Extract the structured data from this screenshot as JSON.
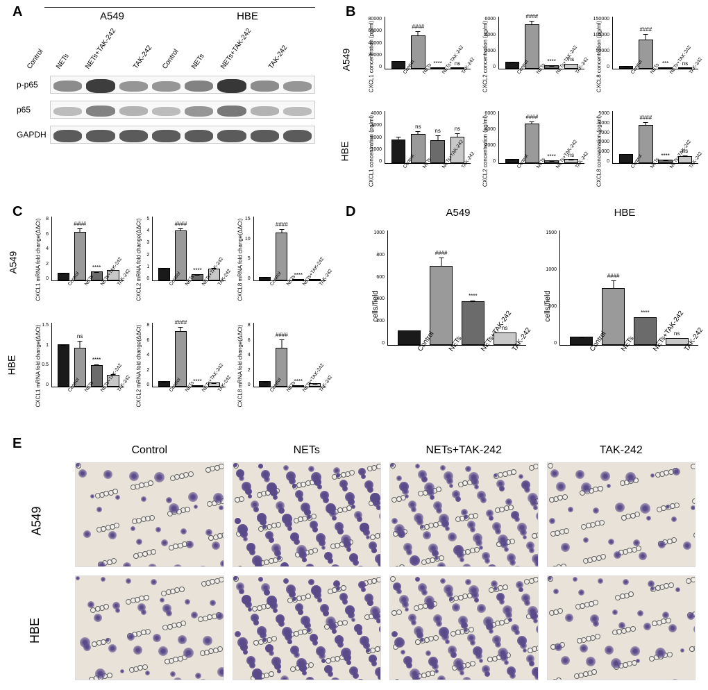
{
  "panels": {
    "A": {
      "letter": "A"
    },
    "B": {
      "letter": "B"
    },
    "C": {
      "letter": "C"
    },
    "D": {
      "letter": "D"
    },
    "E": {
      "letter": "E"
    }
  },
  "cell_lines": [
    "A549",
    "HBE"
  ],
  "conditions": [
    "Control",
    "NETs",
    "NETs+TAK-242",
    "TAK-242"
  ],
  "western_blot": {
    "targets": [
      "p-p65",
      "p65",
      "GAPDH"
    ],
    "band_intensities": {
      "p-p65": [
        0.55,
        0.95,
        0.5,
        0.5,
        0.6,
        0.98,
        0.55,
        0.5
      ],
      "p65": [
        0.3,
        0.6,
        0.35,
        0.3,
        0.5,
        0.65,
        0.35,
        0.3
      ],
      "GAPDH": [
        0.8,
        0.8,
        0.8,
        0.8,
        0.8,
        0.8,
        0.8,
        0.8
      ]
    }
  },
  "bar_colors": [
    "#1a1a1a",
    "#9a9a9a",
    "#6b6b6b",
    "#c8c8c8"
  ],
  "bar_border": "#000000",
  "panel_B": {
    "ylabel_suffix": " concentration (pg/ml)",
    "charts": [
      {
        "row": "A549",
        "gene": "CXCL1",
        "ymax": 80000,
        "ystep": 20000,
        "values": [
          12000,
          51000,
          2500,
          2000
        ],
        "err": [
          3000,
          12000,
          800,
          700
        ],
        "sig": [
          "",
          "####",
          "****",
          "ns"
        ]
      },
      {
        "row": "A549",
        "gene": "CXCL2",
        "ymax": 6000,
        "ystep": 2000,
        "values": [
          800,
          5100,
          400,
          600
        ],
        "err": [
          300,
          600,
          150,
          400
        ],
        "sig": [
          "",
          "####",
          "****",
          "ns"
        ]
      },
      {
        "row": "A549",
        "gene": "CXCL8",
        "ymax": 150000,
        "ystep": 50000,
        "values": [
          8000,
          85000,
          3000,
          4000
        ],
        "err": [
          3000,
          30000,
          1500,
          4000
        ],
        "sig": [
          "",
          "####",
          "***",
          "ns"
        ]
      },
      {
        "row": "HBE",
        "gene": "CXCL1",
        "ymax": 4000,
        "ystep": 1000,
        "values": [
          1800,
          2250,
          1750,
          2050
        ],
        "err": [
          700,
          450,
          1100,
          600
        ],
        "sig": [
          "",
          "ns",
          "ns",
          "ns"
        ]
      },
      {
        "row": "HBE",
        "gene": "CXCL2",
        "ymax": 6000,
        "ystep": 2000,
        "values": [
          500,
          4550,
          350,
          450
        ],
        "err": [
          250,
          500,
          150,
          350
        ],
        "sig": [
          "",
          "####",
          "****",
          "ns"
        ]
      },
      {
        "row": "HBE",
        "gene": "CXCL8",
        "ymax": 5000,
        "ystep": 1000,
        "values": [
          900,
          3650,
          350,
          700
        ],
        "err": [
          350,
          500,
          150,
          700
        ],
        "sig": [
          "",
          "####",
          "****",
          "ns"
        ]
      }
    ]
  },
  "panel_C": {
    "ylabel_suffix": " mRNA fold change(ΔΔCt)",
    "charts": [
      {
        "row": "A549",
        "gene": "CXCL1",
        "ymax": 8,
        "ystep": 2,
        "values": [
          1,
          6.1,
          1.1,
          1.3
        ],
        "err": [
          0,
          0.7,
          0.3,
          0.4
        ],
        "sig": [
          "",
          "####",
          "****",
          ""
        ]
      },
      {
        "row": "A549",
        "gene": "CXCL2",
        "ymax": 5,
        "ystep": 1,
        "values": [
          1,
          3.9,
          0.5,
          0.9
        ],
        "err": [
          0,
          0.3,
          0.15,
          0.9
        ],
        "sig": [
          "",
          "####",
          "****",
          ""
        ]
      },
      {
        "row": "A549",
        "gene": "CXCL8",
        "ymax": 15,
        "ystep": 5,
        "values": [
          0.8,
          11.2,
          0.3,
          0.4
        ],
        "err": [
          0,
          1.5,
          0.1,
          0.2
        ],
        "sig": [
          "",
          "####",
          "****",
          ""
        ]
      },
      {
        "row": "HBE",
        "gene": "CXCL1",
        "ymax": 1.5,
        "ystep": 0.5,
        "values": [
          1,
          0.92,
          0.5,
          0.28
        ],
        "err": [
          0,
          0.3,
          0.1,
          0.15
        ],
        "sig": [
          "",
          "ns",
          "****",
          ""
        ]
      },
      {
        "row": "HBE",
        "gene": "CXCL2",
        "ymax": 8,
        "ystep": 2,
        "values": [
          0.7,
          7.0,
          0.2,
          0.5
        ],
        "err": [
          0,
          0.7,
          0.1,
          0.3
        ],
        "sig": [
          "",
          "####",
          "****",
          ""
        ]
      },
      {
        "row": "HBE",
        "gene": "CXCL8",
        "ymax": 8,
        "ystep": 2,
        "values": [
          0.7,
          4.9,
          0.2,
          0.4
        ],
        "err": [
          0,
          1.8,
          0.1,
          0.2
        ],
        "sig": [
          "",
          "####",
          "****",
          ""
        ]
      }
    ]
  },
  "panel_D": {
    "ylabel": "cells/field",
    "charts": [
      {
        "title": "A549",
        "ymax": 1000,
        "ystep": 200,
        "values": [
          130,
          690,
          380,
          110
        ],
        "err": [
          30,
          120,
          40,
          30
        ],
        "sig": [
          "",
          "####",
          "****",
          "ns"
        ]
      },
      {
        "title": "HBE",
        "ymax": 1500,
        "ystep": 500,
        "values": [
          110,
          750,
          360,
          95
        ],
        "err": [
          40,
          220,
          70,
          45
        ],
        "sig": [
          "",
          "####",
          "****",
          "ns"
        ]
      }
    ]
  },
  "panel_E": {
    "columns": [
      "Control",
      "NETs",
      "NETs+TAK-242",
      "TAK-242"
    ],
    "rows": [
      "A549",
      "HBE"
    ],
    "cell_density": [
      [
        0.12,
        0.85,
        0.4,
        0.1
      ],
      [
        0.14,
        0.9,
        0.45,
        0.12
      ]
    ],
    "stain_color": "#5a4a8a",
    "background_color": "#e8e2d8"
  },
  "fonts": {
    "panel_letter_size": 20,
    "axis_label_size": 9,
    "tick_size": 7
  }
}
